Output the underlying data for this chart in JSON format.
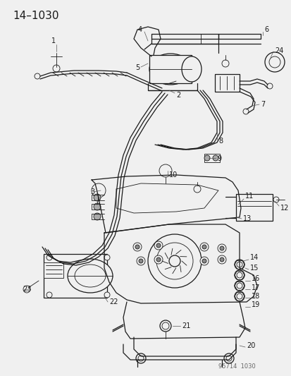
{
  "title": "14–1030",
  "footer": "95714  1030",
  "bg_color": "#f5f5f5",
  "line_color": "#1a1a1a",
  "title_fontsize": 11,
  "footer_fontsize": 6,
  "label_fontsize": 7,
  "fig_w": 4.14,
  "fig_h": 5.33,
  "dpi": 100
}
